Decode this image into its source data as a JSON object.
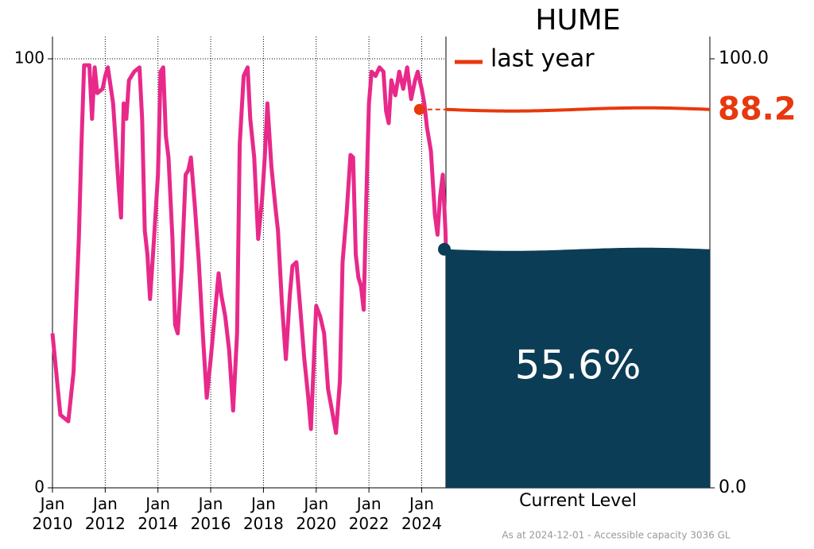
{
  "chart_data": {
    "type": "line",
    "title": "HUME",
    "footnote": "As at 2024-12-01 - Accessible capacity 3036 GL",
    "x": [
      2010.0,
      2010.3,
      2010.6,
      2010.8,
      2011.0,
      2011.1,
      2011.2,
      2011.4,
      2011.5,
      2011.6,
      2011.7,
      2011.9,
      2012.0,
      2012.1,
      2012.3,
      2012.5,
      2012.6,
      2012.7,
      2012.8,
      2012.9,
      2013.1,
      2013.3,
      2013.4,
      2013.5,
      2013.6,
      2013.7,
      2013.85,
      2014.0,
      2014.1,
      2014.2,
      2014.3,
      2014.4,
      2014.55,
      2014.65,
      2014.75,
      2014.9,
      2015.05,
      2015.15,
      2015.25,
      2015.4,
      2015.55,
      2015.7,
      2015.85,
      2016.0,
      2016.15,
      2016.3,
      2016.4,
      2016.55,
      2016.7,
      2016.85,
      2017.0,
      2017.1,
      2017.25,
      2017.4,
      2017.5,
      2017.65,
      2017.8,
      2017.95,
      2018.05,
      2018.15,
      2018.3,
      2018.45,
      2018.55,
      2018.7,
      2018.85,
      2019.0,
      2019.1,
      2019.25,
      2019.4,
      2019.55,
      2019.7,
      2019.8,
      2020.0,
      2020.15,
      2020.3,
      2020.45,
      2020.6,
      2020.75,
      2020.9,
      2021.0,
      2021.15,
      2021.3,
      2021.4,
      2021.5,
      2021.6,
      2021.7,
      2021.8,
      2021.9,
      2022.0,
      2022.1,
      2022.25,
      2022.4,
      2022.55,
      2022.65,
      2022.75,
      2022.85,
      2023.0,
      2023.15,
      2023.3,
      2023.45,
      2023.6,
      2023.75,
      2023.85,
      2024.0,
      2024.1,
      2024.2,
      2024.35,
      2024.5,
      2024.6,
      2024.7,
      2024.8,
      2024.9,
      2024.92
    ],
    "series": [
      {
        "color": "#e8298a",
        "values": [
          36,
          17,
          15.5,
          27,
          58,
          80,
          98.5,
          98.5,
          86,
          98,
          92,
          93,
          96,
          98,
          89.6,
          71,
          63,
          89.6,
          86,
          95,
          97,
          98,
          86,
          60,
          54.4,
          44,
          58,
          73,
          97,
          98,
          82,
          77,
          58,
          38,
          36,
          51,
          73,
          74,
          77,
          65.6,
          52.6,
          36,
          21,
          30,
          40,
          50,
          45,
          40,
          32,
          18,
          36,
          80,
          96,
          98,
          86,
          77,
          58,
          67.4,
          77,
          89.6,
          75,
          65.6,
          60,
          43,
          30,
          45,
          51.7,
          52.6,
          41.5,
          30,
          21,
          13.7,
          42.4,
          40,
          36,
          23,
          18,
          12.8,
          25,
          52.6,
          63.7,
          77.6,
          77,
          54.4,
          49,
          47,
          41.5,
          67.4,
          89.6,
          97,
          96,
          98,
          97,
          87.8,
          85,
          95,
          91.5,
          97,
          93,
          98,
          90.6,
          95,
          97,
          93,
          89.6,
          84,
          78.5,
          63.7,
          59,
          68,
          73,
          60,
          55.6
        ]
      }
    ],
    "xlim": [
      2010,
      2024.92
    ],
    "xticks": [
      {
        "value": 2010,
        "label": "Jan\n2010"
      },
      {
        "value": 2012,
        "label": "Jan\n2012"
      },
      {
        "value": 2014,
        "label": "Jan\n2014"
      },
      {
        "value": 2016,
        "label": "Jan\n2016"
      },
      {
        "value": 2018,
        "label": "Jan\n2018"
      },
      {
        "value": 2020,
        "label": "Jan\n2020"
      },
      {
        "value": 2022,
        "label": "Jan\n2022"
      },
      {
        "value": 2024,
        "label": "Jan\n2024"
      }
    ],
    "ylim": [
      0,
      100
    ],
    "yticks": [
      0,
      100
    ],
    "y2lim": [
      0,
      100
    ],
    "y2ticks": [
      {
        "value": 0,
        "label": "0.0"
      },
      {
        "value": 100,
        "label": "100.0"
      }
    ],
    "grid": true,
    "last_year": {
      "name": "last year",
      "x": 2023.92,
      "value": 88.2,
      "color": "#e8380d"
    },
    "current_level": {
      "label": "Current Level",
      "value": 55.6,
      "value_label": "55.6%",
      "color": "#0b3d56"
    }
  }
}
